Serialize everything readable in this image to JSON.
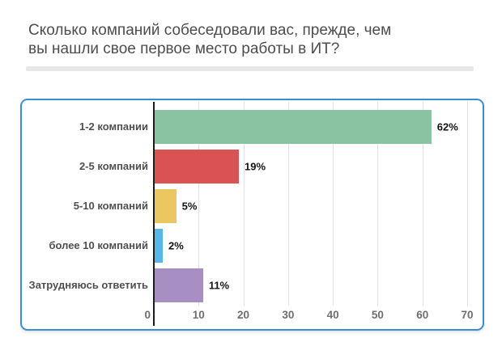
{
  "header": {
    "title_line1": "Сколько компаний собеседовали вас, прежде, чем",
    "title_line2": "вы нашли свое первое место работы в ИТ?"
  },
  "colors": {
    "card_border": "#3a8ed2",
    "title_text": "#4d4d4d",
    "grid_line": "#e2e2e2",
    "zero_axis": "#1c1c1c"
  },
  "chart_data": {
    "type": "bar",
    "orientation": "horizontal",
    "title": "Сколько компаний собеседовали вас, прежде, чем вы нашли свое первое место работы в ИТ?",
    "categories": [
      "1-2 компании",
      "2-5 компаний",
      "5-10 компаний",
      "более 10 компаний",
      "Затрудняюсь ответить"
    ],
    "values": [
      62,
      19,
      5,
      2,
      11
    ],
    "value_labels": [
      "62%",
      "19%",
      "5%",
      "2%",
      "11%"
    ],
    "bar_colors": [
      "#8ac3a2",
      "#d95353",
      "#ebc761",
      "#57b7e8",
      "#a78fc4"
    ],
    "x_ticks": [
      0,
      10,
      20,
      30,
      40,
      50,
      60,
      70
    ],
    "xlim": [
      0,
      70
    ],
    "unit": "%",
    "grid": true,
    "legend": false
  }
}
